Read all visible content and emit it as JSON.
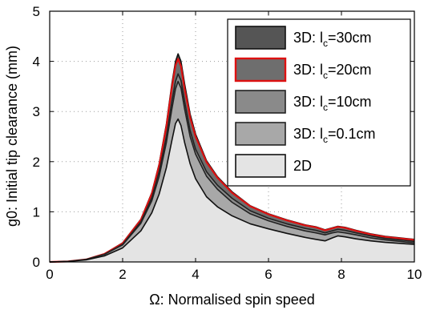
{
  "chart_data": {
    "type": "area",
    "xlabel": "Ω: Normalised spin speed",
    "ylabel": "g0: Initial tip clearance (mm)",
    "xlim": [
      0,
      10
    ],
    "ylim": [
      0,
      5
    ],
    "xticks": [
      "0",
      "2",
      "4",
      "6",
      "8",
      "10"
    ],
    "yticks": [
      "0",
      "1",
      "2",
      "3",
      "4",
      "5"
    ],
    "grid": "dotted",
    "legend_position": "top-right",
    "x": [
      0,
      0.5,
      1,
      1.5,
      2,
      2.5,
      2.8,
      3,
      3.2,
      3.35,
      3.45,
      3.52,
      3.6,
      3.7,
      3.85,
      4,
      4.3,
      4.6,
      5,
      5.5,
      6,
      6.5,
      7,
      7.3,
      7.55,
      7.75,
      7.9,
      8.1,
      8.4,
      8.8,
      9.2,
      9.6,
      10
    ],
    "series": [
      {
        "name_prefix": "3D: l",
        "name_sub": "c",
        "name_suffix": "=30cm",
        "fill": "#555555",
        "stroke": "#111111",
        "values": [
          0,
          0.01,
          0.05,
          0.16,
          0.38,
          0.85,
          1.38,
          1.95,
          2.75,
          3.55,
          4.0,
          4.15,
          4.0,
          3.55,
          2.95,
          2.55,
          2.02,
          1.7,
          1.4,
          1.12,
          0.96,
          0.84,
          0.74,
          0.7,
          0.64,
          0.68,
          0.71,
          0.69,
          0.63,
          0.56,
          0.51,
          0.48,
          0.45
        ]
      },
      {
        "name_prefix": "3D: l",
        "name_sub": "c",
        "name_suffix": "=20cm",
        "fill": "#6e6e6e",
        "stroke": "#dd1111",
        "values": [
          0,
          0.01,
          0.05,
          0.16,
          0.37,
          0.84,
          1.36,
          1.92,
          2.7,
          3.48,
          3.92,
          4.05,
          3.9,
          3.45,
          2.88,
          2.5,
          1.99,
          1.68,
          1.38,
          1.11,
          0.95,
          0.83,
          0.73,
          0.69,
          0.63,
          0.67,
          0.7,
          0.68,
          0.62,
          0.55,
          0.5,
          0.47,
          0.44
        ]
      },
      {
        "name_prefix": "3D: l",
        "name_sub": "c",
        "name_suffix": "=10cm",
        "fill": "#8a8a8a",
        "stroke": "#222222",
        "values": [
          0,
          0.01,
          0.05,
          0.15,
          0.35,
          0.8,
          1.28,
          1.8,
          2.5,
          3.2,
          3.6,
          3.75,
          3.62,
          3.2,
          2.62,
          2.25,
          1.8,
          1.53,
          1.27,
          1.02,
          0.87,
          0.76,
          0.67,
          0.63,
          0.58,
          0.62,
          0.65,
          0.63,
          0.58,
          0.52,
          0.47,
          0.44,
          0.41
        ]
      },
      {
        "name_prefix": "3D: l",
        "name_sub": "c",
        "name_suffix": "=0.1cm",
        "fill": "#a8a8a8",
        "stroke": "#222222",
        "values": [
          0,
          0.01,
          0.05,
          0.15,
          0.34,
          0.77,
          1.22,
          1.7,
          2.38,
          3.05,
          3.45,
          3.6,
          3.47,
          3.05,
          2.5,
          2.15,
          1.71,
          1.45,
          1.19,
          0.96,
          0.82,
          0.71,
          0.62,
          0.58,
          0.54,
          0.58,
          0.6,
          0.58,
          0.54,
          0.48,
          0.44,
          0.41,
          0.38
        ]
      },
      {
        "name_prefix": "2D",
        "name_sub": "",
        "name_suffix": "",
        "fill": "#e4e4e4",
        "stroke": "#111111",
        "values": [
          0,
          0.01,
          0.04,
          0.12,
          0.28,
          0.62,
          0.98,
          1.35,
          1.88,
          2.42,
          2.76,
          2.85,
          2.72,
          2.38,
          1.96,
          1.66,
          1.3,
          1.1,
          0.92,
          0.76,
          0.66,
          0.57,
          0.49,
          0.45,
          0.42,
          0.48,
          0.52,
          0.5,
          0.46,
          0.42,
          0.39,
          0.37,
          0.35
        ]
      }
    ]
  }
}
